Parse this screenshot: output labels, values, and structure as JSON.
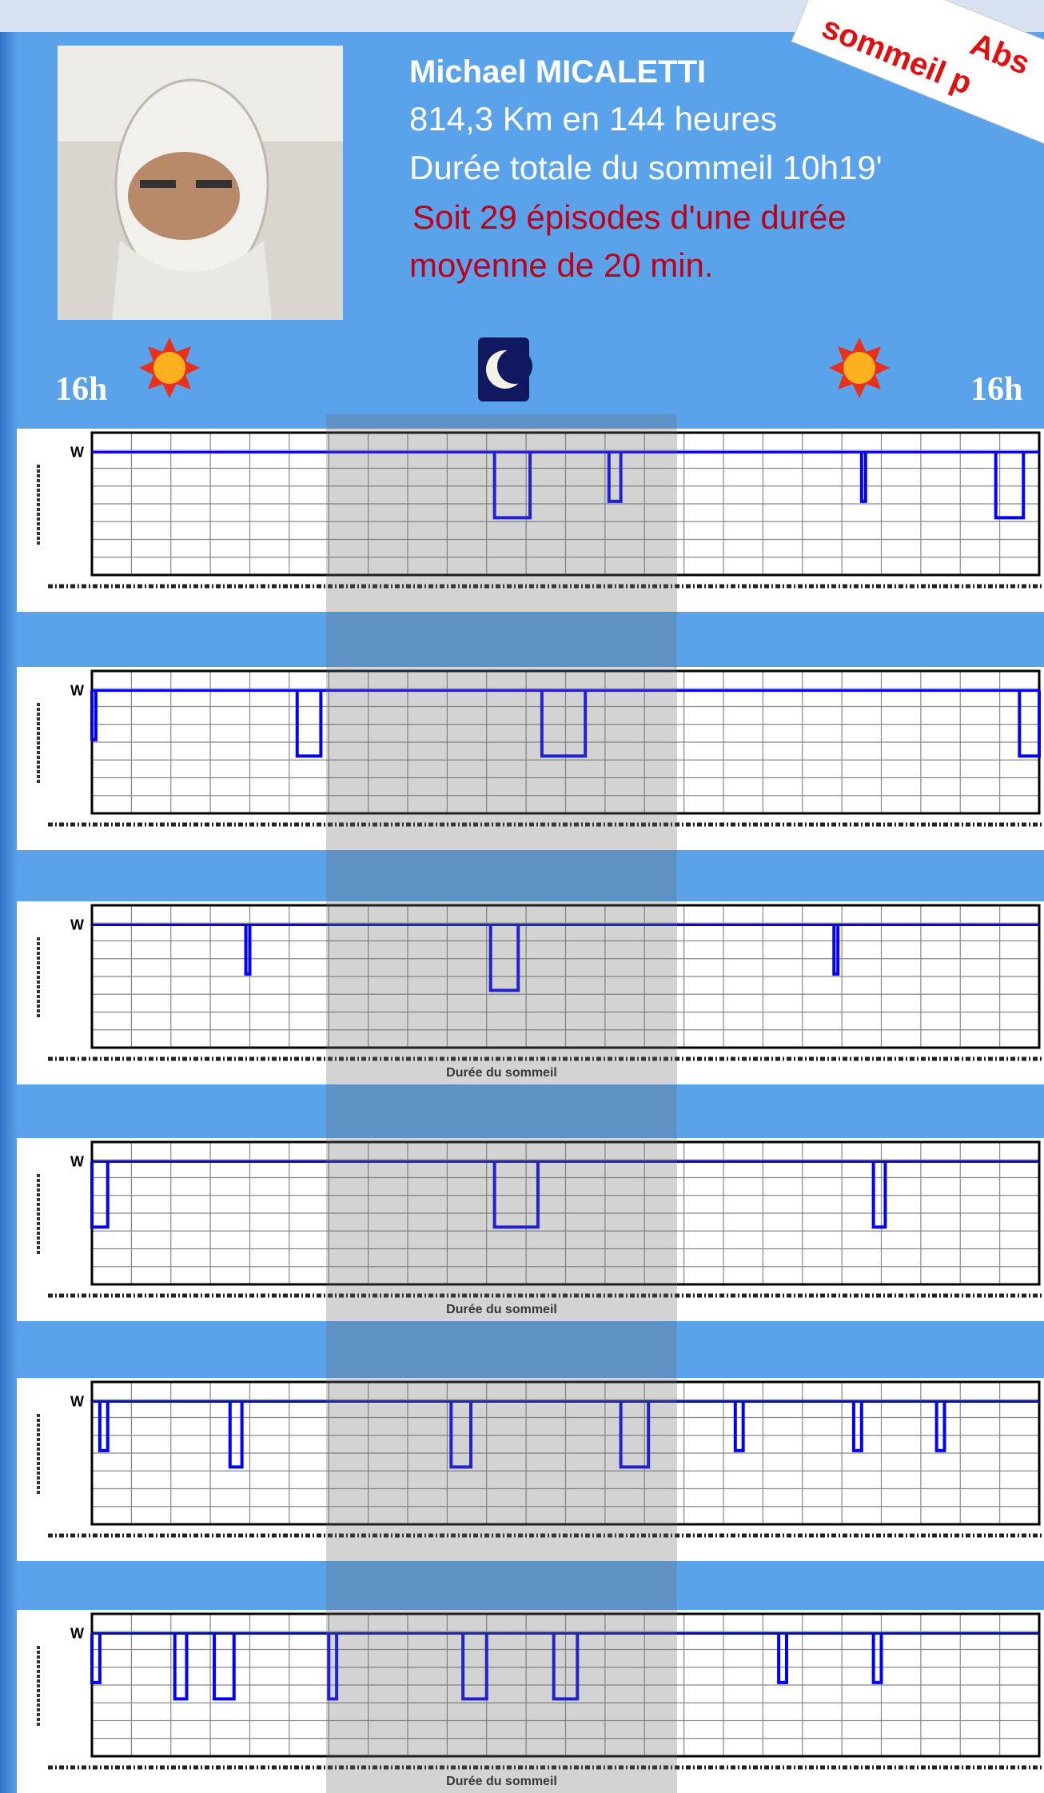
{
  "header": {
    "name": "Michael MICALETTI",
    "distance": "814,3 Km en 144 heures",
    "sleep_total": "Durée  totale du sommeil 10h19'",
    "episodes_lines": [
      "Soit 29 épisodes d'une durée",
      "moyenne de 20 min."
    ]
  },
  "time_labels": [
    "16h",
    "16h"
  ],
  "banner": [
    "Abs",
    "sommeil p"
  ],
  "chart_data": [
    {
      "type": "hypnogram",
      "color": "#0000ff",
      "xlim": [
        0,
        24
      ],
      "ylim": [
        -1.2,
        7.5
      ],
      "yticks": [
        {
          "value": 0,
          "label": "W"
        }
      ],
      "episodes": [
        {
          "start": 10.2,
          "end": 11.1,
          "stage": 4
        },
        {
          "start": 13.1,
          "end": 13.4,
          "stage": 3
        },
        {
          "start": 19.5,
          "end": 19.6,
          "stage": 3
        },
        {
          "start": 22.9,
          "end": 23.6,
          "stage": 4
        }
      ]
    },
    {
      "type": "hypnogram",
      "color": "#0000ff",
      "xlim": [
        0,
        24
      ],
      "ylim": [
        -1.2,
        7.5
      ],
      "yticks": [
        {
          "value": 0,
          "label": "W"
        }
      ],
      "episodes": [
        {
          "start": 0,
          "end": 0.1,
          "stage": 3
        },
        {
          "start": 5.2,
          "end": 5.8,
          "stage": 4
        },
        {
          "start": 11.4,
          "end": 12.5,
          "stage": 4
        },
        {
          "start": 23.5,
          "end": 24,
          "stage": 4
        }
      ]
    },
    {
      "type": "hypnogram",
      "color": "#0000ff",
      "xlim": [
        0,
        24
      ],
      "ylim": [
        -1.2,
        7.5
      ],
      "yticks": [
        {
          "value": 0,
          "label": "W"
        }
      ],
      "x_label": "Durée du sommeil",
      "episodes": [
        {
          "start": 3.9,
          "end": 4.0,
          "stage": 3
        },
        {
          "start": 10.1,
          "end": 10.8,
          "stage": 4
        },
        {
          "start": 18.8,
          "end": 18.9,
          "stage": 3
        }
      ]
    },
    {
      "type": "hypnogram",
      "color": "#0000ff",
      "xlim": [
        0,
        24
      ],
      "ylim": [
        -1.2,
        7.5
      ],
      "yticks": [
        {
          "value": 0,
          "label": "W"
        }
      ],
      "x_label": "Durée du sommeil",
      "episodes": [
        {
          "start": 0,
          "end": 0.4,
          "stage": 4
        },
        {
          "start": 10.2,
          "end": 11.3,
          "stage": 4
        },
        {
          "start": 19.8,
          "end": 20.1,
          "stage": 4
        }
      ]
    },
    {
      "type": "hypnogram",
      "color": "#0000ff",
      "xlim": [
        0,
        24
      ],
      "ylim": [
        -1.2,
        7.5
      ],
      "yticks": [
        {
          "value": 0,
          "label": "W"
        }
      ],
      "episodes": [
        {
          "start": 0.2,
          "end": 0.4,
          "stage": 3
        },
        {
          "start": 3.5,
          "end": 3.8,
          "stage": 4
        },
        {
          "start": 9.1,
          "end": 9.6,
          "stage": 4
        },
        {
          "start": 13.4,
          "end": 14.1,
          "stage": 4
        },
        {
          "start": 16.3,
          "end": 16.5,
          "stage": 3
        },
        {
          "start": 19.3,
          "end": 19.5,
          "stage": 3
        },
        {
          "start": 21.4,
          "end": 21.6,
          "stage": 3
        }
      ]
    },
    {
      "type": "hypnogram",
      "color": "#0000ff",
      "xlim": [
        0,
        24
      ],
      "ylim": [
        -1.2,
        7.5
      ],
      "yticks": [
        {
          "value": 0,
          "label": "W"
        }
      ],
      "x_label": "Durée du sommeil",
      "episodes": [
        {
          "start": 0,
          "end": 0.2,
          "stage": 3
        },
        {
          "start": 2.1,
          "end": 2.4,
          "stage": 4
        },
        {
          "start": 3.1,
          "end": 3.6,
          "stage": 4
        },
        {
          "start": 6.0,
          "end": 6.2,
          "stage": 4
        },
        {
          "start": 9.4,
          "end": 10.0,
          "stage": 4
        },
        {
          "start": 11.7,
          "end": 12.3,
          "stage": 4
        },
        {
          "start": 17.4,
          "end": 17.6,
          "stage": 3
        },
        {
          "start": 19.8,
          "end": 20.0,
          "stage": 3
        }
      ]
    }
  ]
}
